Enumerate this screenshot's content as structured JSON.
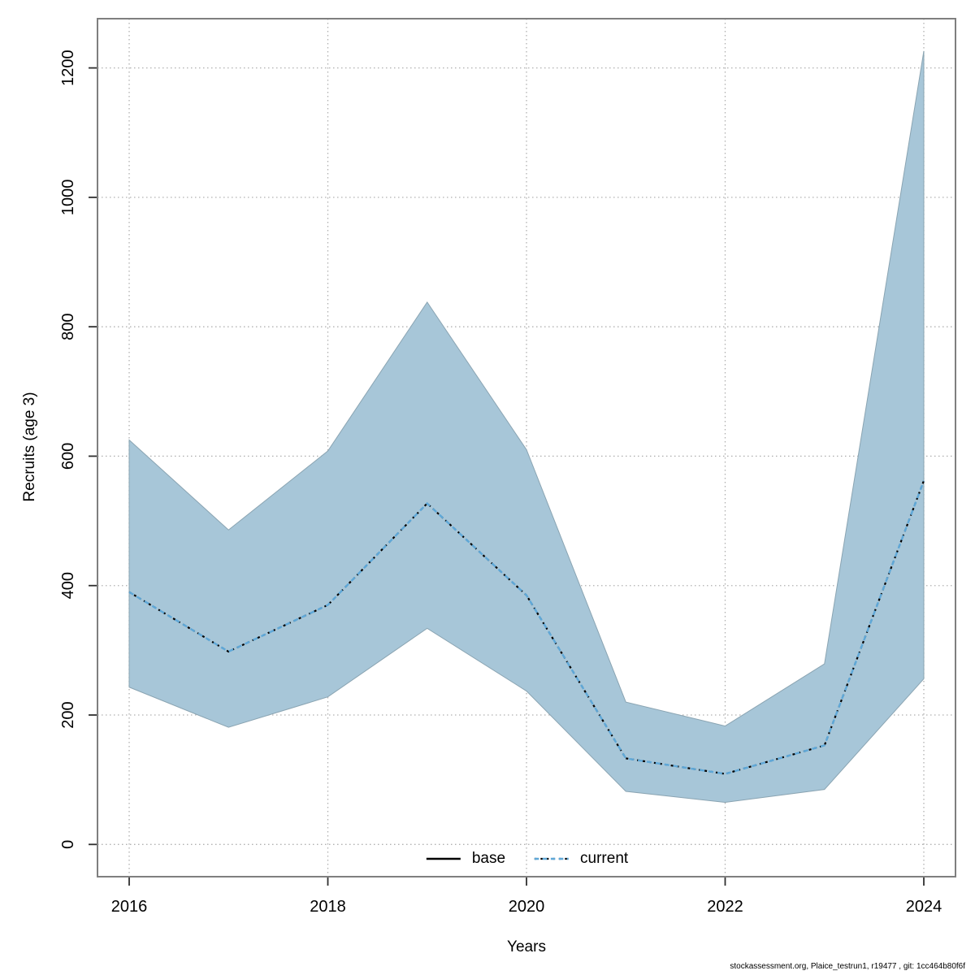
{
  "chart_data": {
    "type": "line",
    "subtype": "line-with-confidence-band",
    "x": [
      2016,
      2017,
      2018,
      2019,
      2020,
      2021,
      2022,
      2023,
      2024
    ],
    "series": [
      {
        "name": "base",
        "style": "solid",
        "color": "#000000",
        "values": [
          390,
          298,
          370,
          527,
          385,
          133,
          109,
          153,
          562
        ]
      },
      {
        "name": "current",
        "style": "dotted",
        "color": "#5fa8d8",
        "values": [
          390,
          298,
          370,
          527,
          385,
          133,
          109,
          153,
          562
        ]
      }
    ],
    "confidence_band": {
      "series": "current",
      "low": [
        243,
        181,
        228,
        334,
        237,
        82,
        65,
        85,
        256
      ],
      "high": [
        625,
        486,
        608,
        838,
        610,
        220,
        183,
        279,
        1226
      ],
      "color": "#a7c6d8"
    },
    "xlabel": "Years",
    "ylabel": "Recruits (age 3)",
    "x_ticks": [
      2016,
      2018,
      2020,
      2022,
      2024
    ],
    "y_ticks": [
      0,
      200,
      400,
      600,
      800,
      1000,
      1200
    ],
    "xlim": [
      2015.68,
      2024.32
    ],
    "ylim": [
      -50,
      1275
    ],
    "grid": "dotted",
    "legend_position": "bottom-center-inside"
  },
  "legend": {
    "items": [
      {
        "label": "base",
        "color": "#000000",
        "style": "solid"
      },
      {
        "label": "current",
        "color": "#5fa8d8",
        "style": "dotted"
      }
    ]
  },
  "labels": {
    "ylabel": "Recruits (age 3)",
    "xlabel": "Years"
  },
  "footer": {
    "text": "stockassessment.org, Plaice_testrun1, r19477 , git: 1cc464b80f6f"
  },
  "colors": {
    "band": "#a7c6d8",
    "current_line": "#5fa8d8",
    "base_line": "#000000",
    "grid": "#b0b0b0",
    "frame": "#7f7f7f",
    "tick": "#2f2f2f",
    "text": "#000000",
    "background": "#ffffff"
  }
}
